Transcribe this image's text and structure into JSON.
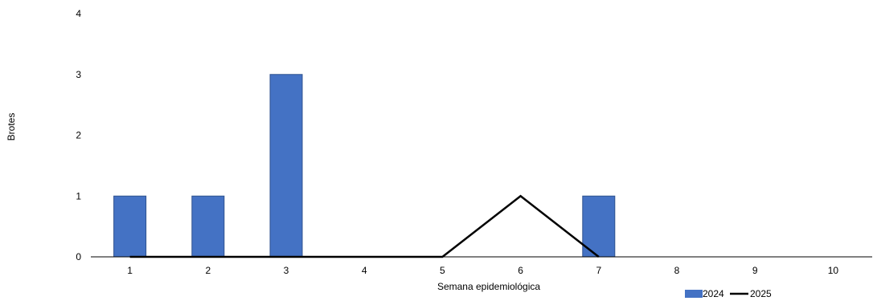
{
  "chart_data": {
    "type": "bar",
    "title": "",
    "xlabel": "Semana epidemiológica",
    "ylabel": "Brotes",
    "categories": [
      "1",
      "2",
      "3",
      "4",
      "5",
      "6",
      "7",
      "8",
      "9",
      "10"
    ],
    "ylim": [
      0,
      4
    ],
    "yticks": [
      "0",
      "1",
      "2",
      "3",
      "4"
    ],
    "grid": false,
    "legend_position": "bottom-right",
    "series": [
      {
        "name": "2024",
        "type": "bar",
        "color": "#4472C4",
        "values": [
          1,
          1,
          3,
          0,
          0,
          0,
          1,
          0,
          0,
          0
        ]
      },
      {
        "name": "2025",
        "type": "line",
        "color": "#000000",
        "values": [
          0,
          0,
          0,
          0,
          0,
          1,
          0,
          null,
          null,
          null
        ]
      }
    ]
  }
}
